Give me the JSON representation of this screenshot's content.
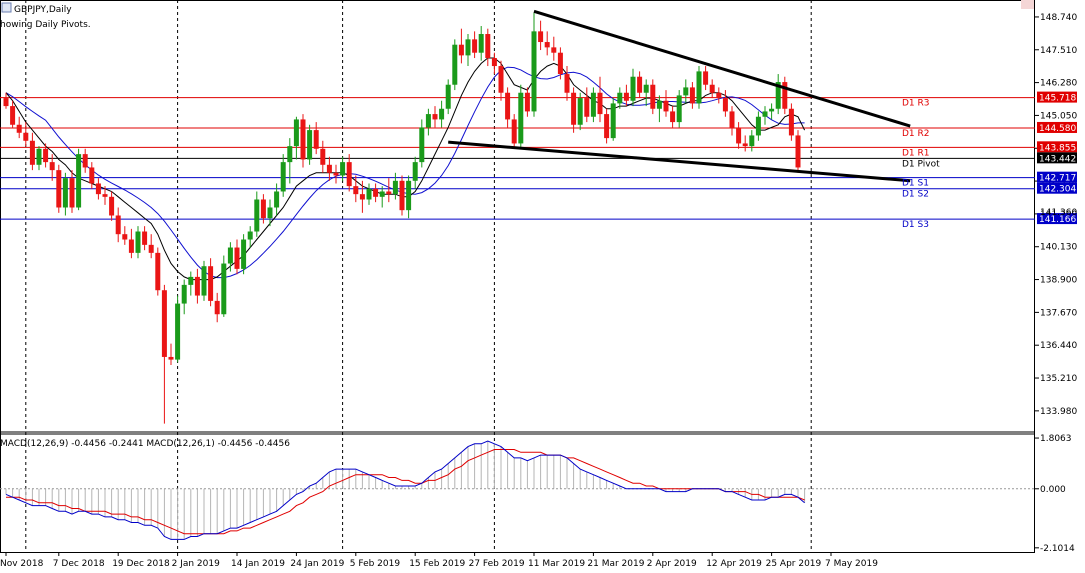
{
  "chart_data": [
    {
      "type": "candlestick",
      "title": "GBPJPY,Daily",
      "subtitle": "howing Daily Pivots.",
      "ylim": [
        133.3,
        149.3
      ],
      "y_ticks": [
        "148.740",
        "147.510",
        "146.280",
        "145.050",
        "143.820",
        "142.590",
        "141.360",
        "140.130",
        "138.900",
        "137.670",
        "136.440",
        "135.210",
        "133.980"
      ],
      "x_ticks": [
        "Nov 2018",
        "7 Dec 2018",
        "19 Dec 2018",
        "2 Jan 2019",
        "14 Jan 2019",
        "24 Jan 2019",
        "5 Feb 2019",
        "15 Feb 2019",
        "27 Feb 2019",
        "11 Mar 2019",
        "21 Mar 2019",
        "2 Apr 2019",
        "12 Apr 2019",
        "25 Apr 2019",
        "7 May 2019"
      ],
      "x_tick_index": [
        0,
        8,
        17,
        26,
        35,
        44,
        53,
        62,
        71,
        80,
        89,
        98,
        107,
        116,
        125
      ],
      "separator_index": [
        3,
        26,
        51,
        74,
        122
      ],
      "colors": {
        "up": "#1a9a1a",
        "down": "#ea1515",
        "ma_fast": "#000000",
        "ma_slow": "#1010d0",
        "pivot_red": "#e00000",
        "pivot_blue": "#0000c8",
        "trend": "#000000",
        "grid": "#000000"
      },
      "candles": [
        [
          145.7,
          145.9,
          145.3,
          145.4
        ],
        [
          145.4,
          145.6,
          144.6,
          144.7
        ],
        [
          144.7,
          145.0,
          144.2,
          144.4
        ],
        [
          144.4,
          144.8,
          143.9,
          144.1
        ],
        [
          144.1,
          144.4,
          143.0,
          143.2
        ],
        [
          143.2,
          143.9,
          143.0,
          143.8
        ],
        [
          143.8,
          144.0,
          143.1,
          143.3
        ],
        [
          143.3,
          143.6,
          142.6,
          143.0
        ],
        [
          143.0,
          143.2,
          141.4,
          141.6
        ],
        [
          141.6,
          142.9,
          141.3,
          142.7
        ],
        [
          142.7,
          143.0,
          141.4,
          141.6
        ],
        [
          141.6,
          143.8,
          141.5,
          143.6
        ],
        [
          143.6,
          143.8,
          142.9,
          143.1
        ],
        [
          143.1,
          143.3,
          142.3,
          142.5
        ],
        [
          142.5,
          142.7,
          141.9,
          142.1
        ],
        [
          142.1,
          142.4,
          141.7,
          142.0
        ],
        [
          142.0,
          142.2,
          141.1,
          141.3
        ],
        [
          141.3,
          141.6,
          140.3,
          140.6
        ],
        [
          140.6,
          140.9,
          140.2,
          140.4
        ],
        [
          140.4,
          140.8,
          139.7,
          139.9
        ],
        [
          139.9,
          140.9,
          139.7,
          140.7
        ],
        [
          140.7,
          140.9,
          140.0,
          140.2
        ],
        [
          140.2,
          140.6,
          139.7,
          139.9
        ],
        [
          139.9,
          140.1,
          138.3,
          138.5
        ],
        [
          138.5,
          138.7,
          133.5,
          136.0
        ],
        [
          136.0,
          136.5,
          135.7,
          135.9
        ],
        [
          135.9,
          138.3,
          135.8,
          138.0
        ],
        [
          138.0,
          138.9,
          137.6,
          138.7
        ],
        [
          138.7,
          139.2,
          138.3,
          139.0
        ],
        [
          139.0,
          139.3,
          138.0,
          138.3
        ],
        [
          138.3,
          139.6,
          138.1,
          139.4
        ],
        [
          139.4,
          139.7,
          137.9,
          138.1
        ],
        [
          138.1,
          138.4,
          137.3,
          137.6
        ],
        [
          137.6,
          139.8,
          137.5,
          139.5
        ],
        [
          139.5,
          140.3,
          139.2,
          140.1
        ],
        [
          140.1,
          140.4,
          139.1,
          139.3
        ],
        [
          139.3,
          140.6,
          139.1,
          140.4
        ],
        [
          140.4,
          140.9,
          140.1,
          140.7
        ],
        [
          140.7,
          142.2,
          140.5,
          141.9
        ],
        [
          141.9,
          142.1,
          141.0,
          141.2
        ],
        [
          141.2,
          141.9,
          140.9,
          141.6
        ],
        [
          141.6,
          142.5,
          141.3,
          142.2
        ],
        [
          142.2,
          143.6,
          142.0,
          143.3
        ],
        [
          143.3,
          144.2,
          142.5,
          143.9
        ],
        [
          143.9,
          145.0,
          143.4,
          144.9
        ],
        [
          144.9,
          145.1,
          143.1,
          143.4
        ],
        [
          143.4,
          144.7,
          143.2,
          144.5
        ],
        [
          144.5,
          144.8,
          143.6,
          143.8
        ],
        [
          143.8,
          144.1,
          142.9,
          143.2
        ],
        [
          143.2,
          143.5,
          142.6,
          142.9
        ],
        [
          142.9,
          143.2,
          142.5,
          142.8
        ],
        [
          142.8,
          143.5,
          142.6,
          143.3
        ],
        [
          143.3,
          143.6,
          142.2,
          142.4
        ],
        [
          142.4,
          142.8,
          141.8,
          142.1
        ],
        [
          142.1,
          142.6,
          141.4,
          141.9
        ],
        [
          141.9,
          142.5,
          141.7,
          142.3
        ],
        [
          142.3,
          142.5,
          141.8,
          142.0
        ],
        [
          142.0,
          142.4,
          141.6,
          142.2
        ],
        [
          142.2,
          142.7,
          141.8,
          142.1
        ],
        [
          142.1,
          142.9,
          141.9,
          142.6
        ],
        [
          142.6,
          142.8,
          141.3,
          141.5
        ],
        [
          141.5,
          142.8,
          141.2,
          142.6
        ],
        [
          142.6,
          143.5,
          142.3,
          143.3
        ],
        [
          143.3,
          144.9,
          143.1,
          144.6
        ],
        [
          144.6,
          145.3,
          144.3,
          145.1
        ],
        [
          145.1,
          145.4,
          144.6,
          144.9
        ],
        [
          144.9,
          145.6,
          144.6,
          145.3
        ],
        [
          145.3,
          146.4,
          145.1,
          146.2
        ],
        [
          146.2,
          147.9,
          146.0,
          147.7
        ],
        [
          147.7,
          148.3,
          147.0,
          147.3
        ],
        [
          147.3,
          148.1,
          146.9,
          147.9
        ],
        [
          147.9,
          148.2,
          147.2,
          147.4
        ],
        [
          147.4,
          148.4,
          147.1,
          148.1
        ],
        [
          148.1,
          148.3,
          146.9,
          147.2
        ],
        [
          147.2,
          147.4,
          146.6,
          146.9
        ],
        [
          146.9,
          147.1,
          145.6,
          145.9
        ],
        [
          145.9,
          146.1,
          144.6,
          144.9
        ],
        [
          144.9,
          145.1,
          143.8,
          144.0
        ],
        [
          144.0,
          146.2,
          143.8,
          145.9
        ],
        [
          145.9,
          146.1,
          145.0,
          145.2
        ],
        [
          145.2,
          148.9,
          145.0,
          148.2
        ],
        [
          148.2,
          148.6,
          147.5,
          147.8
        ],
        [
          147.8,
          148.2,
          147.3,
          147.6
        ],
        [
          147.6,
          148.0,
          147.1,
          147.4
        ],
        [
          147.4,
          147.6,
          146.4,
          146.6
        ],
        [
          146.6,
          146.9,
          145.6,
          145.9
        ],
        [
          145.9,
          146.1,
          144.4,
          144.7
        ],
        [
          144.7,
          145.9,
          144.5,
          145.7
        ],
        [
          145.7,
          146.1,
          144.8,
          145.0
        ],
        [
          145.0,
          146.1,
          144.8,
          145.9
        ],
        [
          145.9,
          146.5,
          144.8,
          145.1
        ],
        [
          145.1,
          145.3,
          144.0,
          144.2
        ],
        [
          144.2,
          145.7,
          144.1,
          145.5
        ],
        [
          145.5,
          146.1,
          145.3,
          145.9
        ],
        [
          145.9,
          146.2,
          145.4,
          145.6
        ],
        [
          145.6,
          146.8,
          145.4,
          146.5
        ],
        [
          146.5,
          146.7,
          145.7,
          145.9
        ],
        [
          145.9,
          146.4,
          145.4,
          146.2
        ],
        [
          146.2,
          146.4,
          145.1,
          145.3
        ],
        [
          145.3,
          145.8,
          144.8,
          145.6
        ],
        [
          145.6,
          146.0,
          145.0,
          145.2
        ],
        [
          145.2,
          145.4,
          144.6,
          144.8
        ],
        [
          144.8,
          146.0,
          144.6,
          145.8
        ],
        [
          145.8,
          146.4,
          145.5,
          146.1
        ],
        [
          146.1,
          146.3,
          145.3,
          145.5
        ],
        [
          145.5,
          146.9,
          145.3,
          146.7
        ],
        [
          146.7,
          146.9,
          146.0,
          146.2
        ],
        [
          146.2,
          146.4,
          145.7,
          145.9
        ],
        [
          145.9,
          146.1,
          145.5,
          145.7
        ],
        [
          145.7,
          146.0,
          145.0,
          145.2
        ],
        [
          145.2,
          145.4,
          144.3,
          144.6
        ],
        [
          144.6,
          144.8,
          143.8,
          144.0
        ],
        [
          144.0,
          144.3,
          143.7,
          143.9
        ],
        [
          143.9,
          144.5,
          143.7,
          144.3
        ],
        [
          144.3,
          145.2,
          144.1,
          145.0
        ],
        [
          145.0,
          145.4,
          144.7,
          145.2
        ],
        [
          145.2,
          145.5,
          144.9,
          145.3
        ],
        [
          145.3,
          146.6,
          145.1,
          146.3
        ],
        [
          146.3,
          146.5,
          145.1,
          145.3
        ],
        [
          145.3,
          145.5,
          144.1,
          144.3
        ],
        [
          144.3,
          144.5,
          142.9,
          143.1
        ]
      ],
      "ma_fast": [
        145.9,
        145.6,
        145.2,
        144.8,
        144.5,
        144.2,
        143.9,
        143.7,
        143.4,
        143.2,
        142.9,
        142.7,
        142.6,
        142.5,
        142.4,
        142.3,
        142.2,
        142.0,
        141.8,
        141.6,
        141.4,
        141.2,
        141.0,
        140.6,
        140.0,
        139.5,
        139.2,
        139.0,
        138.9,
        138.9,
        138.9,
        138.9,
        139.0,
        139.2,
        139.4,
        139.6,
        139.8,
        140.1,
        140.4,
        140.7,
        141.0,
        141.3,
        141.6,
        142.0,
        142.4,
        142.6,
        142.8,
        142.9,
        142.9,
        142.9,
        142.9,
        142.9,
        142.8,
        142.6,
        142.4,
        142.3,
        142.2,
        142.1,
        142.1,
        142.1,
        142.0,
        142.0,
        142.2,
        142.6,
        143.1,
        143.6,
        144.1,
        144.6,
        145.2,
        145.8,
        146.3,
        146.7,
        147.0,
        147.2,
        147.2,
        147.0,
        146.6,
        146.2,
        146.1,
        146.0,
        146.4,
        146.7,
        146.9,
        147.0,
        146.9,
        146.6,
        146.2,
        146.0,
        145.8,
        145.6,
        145.5,
        145.3,
        145.3,
        145.4,
        145.4,
        145.5,
        145.6,
        145.7,
        145.7,
        145.6,
        145.5,
        145.4,
        145.4,
        145.5,
        145.6,
        145.6,
        145.8,
        145.9,
        145.9,
        145.8,
        145.6,
        145.3,
        145.0,
        144.7,
        144.5,
        144.5,
        144.6,
        144.7,
        145.0,
        145.1,
        145.0,
        144.5
      ]
    },
    {
      "type": "line",
      "title": "MACD(12,26,9) -0.4456 -0.2441 MACD(12,26,1) -0.4456 -0.4456",
      "ylim": [
        -2.25,
        1.95
      ],
      "y_ticks": [
        "1.8063",
        "0.000",
        "-2.1014"
      ],
      "colors": {
        "macd": "#0000c8",
        "signal": "#e00000",
        "histogram": "#b4b4b4"
      },
      "macd": [
        -0.2,
        -0.3,
        -0.4,
        -0.5,
        -0.6,
        -0.6,
        -0.6,
        -0.7,
        -0.8,
        -0.8,
        -0.9,
        -0.8,
        -0.8,
        -0.9,
        -0.9,
        -1.0,
        -1.0,
        -1.1,
        -1.1,
        -1.2,
        -1.2,
        -1.3,
        -1.3,
        -1.4,
        -1.7,
        -1.8,
        -1.8,
        -1.8,
        -1.7,
        -1.7,
        -1.6,
        -1.6,
        -1.6,
        -1.5,
        -1.4,
        -1.4,
        -1.3,
        -1.2,
        -1.1,
        -1.0,
        -0.9,
        -0.8,
        -0.6,
        -0.4,
        -0.2,
        -0.1,
        0.1,
        0.2,
        0.4,
        0.6,
        0.7,
        0.7,
        0.7,
        0.7,
        0.6,
        0.5,
        0.4,
        0.3,
        0.2,
        0.1,
        0.1,
        0.1,
        0.1,
        0.2,
        0.4,
        0.6,
        0.7,
        0.9,
        1.1,
        1.3,
        1.5,
        1.6,
        1.6,
        1.7,
        1.6,
        1.5,
        1.3,
        1.1,
        1.1,
        1.0,
        1.1,
        1.2,
        1.2,
        1.2,
        1.2,
        1.1,
        0.9,
        0.7,
        0.6,
        0.5,
        0.4,
        0.3,
        0.2,
        0.1,
        0.0,
        0.0,
        0.0,
        0.0,
        0.0,
        0.0,
        -0.1,
        -0.1,
        -0.1,
        -0.1,
        0.0,
        0.0,
        0.0,
        0.0,
        0.0,
        -0.1,
        -0.1,
        -0.2,
        -0.3,
        -0.4,
        -0.4,
        -0.4,
        -0.3,
        -0.3,
        -0.2,
        -0.2,
        -0.3,
        -0.5
      ],
      "signal": [
        -0.3,
        -0.3,
        -0.3,
        -0.4,
        -0.4,
        -0.5,
        -0.5,
        -0.5,
        -0.6,
        -0.6,
        -0.7,
        -0.7,
        -0.8,
        -0.8,
        -0.8,
        -0.8,
        -0.9,
        -0.9,
        -0.9,
        -1.0,
        -1.0,
        -1.1,
        -1.1,
        -1.2,
        -1.3,
        -1.4,
        -1.5,
        -1.6,
        -1.6,
        -1.6,
        -1.6,
        -1.6,
        -1.6,
        -1.6,
        -1.5,
        -1.5,
        -1.4,
        -1.4,
        -1.3,
        -1.2,
        -1.1,
        -1.0,
        -0.9,
        -0.8,
        -0.6,
        -0.5,
        -0.3,
        -0.2,
        -0.1,
        0.1,
        0.2,
        0.3,
        0.4,
        0.5,
        0.5,
        0.5,
        0.5,
        0.5,
        0.4,
        0.4,
        0.3,
        0.3,
        0.2,
        0.2,
        0.3,
        0.3,
        0.4,
        0.5,
        0.7,
        0.8,
        1.0,
        1.1,
        1.2,
        1.3,
        1.4,
        1.4,
        1.4,
        1.4,
        1.3,
        1.3,
        1.3,
        1.3,
        1.2,
        1.2,
        1.2,
        1.1,
        1.1,
        1.0,
        0.9,
        0.8,
        0.7,
        0.6,
        0.5,
        0.4,
        0.3,
        0.2,
        0.2,
        0.1,
        0.1,
        0.0,
        0.0,
        0.0,
        0.0,
        0.0,
        0.0,
        0.0,
        0.0,
        0.0,
        0.0,
        -0.1,
        -0.1,
        -0.1,
        -0.1,
        -0.2,
        -0.2,
        -0.3,
        -0.3,
        -0.3,
        -0.3,
        -0.3,
        -0.3,
        -0.4
      ]
    }
  ],
  "pivots": [
    {
      "name": "D1 R3",
      "value": 145.718,
      "price": "145.718",
      "color": "#e00000"
    },
    {
      "name": "D1 R2",
      "value": 144.58,
      "price": "144.580",
      "color": "#e00000"
    },
    {
      "name": "D1 R1",
      "value": 143.855,
      "price": "143.855",
      "color": "#e00000"
    },
    {
      "name": "D1 Pivot",
      "value": 143.442,
      "price": "143.442",
      "color": "#000000"
    },
    {
      "name": "D1 S1",
      "value": 142.717,
      "price": "142.717",
      "color": "#0000c8"
    },
    {
      "name": "D1 S2",
      "value": 142.304,
      "price": "142.304",
      "color": "#0000c8"
    },
    {
      "name": "D1 S3",
      "value": 141.166,
      "price": "141.166",
      "color": "#0000c8"
    }
  ],
  "trendlines": [
    {
      "name": "upper",
      "from": [
        80,
        148.95
      ],
      "to": [
        137,
        144.65
      ]
    },
    {
      "name": "lower",
      "from": [
        67,
        144.05
      ],
      "to": [
        137,
        142.6
      ]
    }
  ],
  "extra_price_labels": [
    "141.360"
  ]
}
